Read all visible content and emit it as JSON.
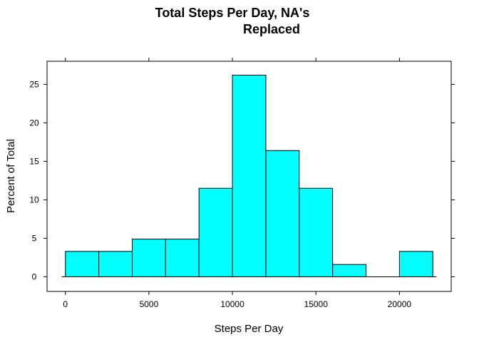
{
  "chart_data": {
    "type": "bar",
    "title_lines": [
      "Total Steps Per Day, NA's",
      "Replaced"
    ],
    "xlabel": "Steps Per Day",
    "ylabel": "Percent of Total",
    "xlim": [
      -1100,
      23100
    ],
    "ylim": [
      -1.9,
      28.0
    ],
    "x_ticks": [
      0,
      5000,
      10000,
      15000,
      20000
    ],
    "x_tick_labels": [
      "0",
      "5000",
      "10000",
      "15000",
      "20000"
    ],
    "y_ticks": [
      0,
      5,
      10,
      15,
      20,
      25
    ],
    "y_tick_labels": [
      "0",
      "5",
      "10",
      "15",
      "20",
      "25"
    ],
    "grid": false,
    "legend": "none",
    "bar_color": "#00FFFF",
    "bar_edge_color": "#000000",
    "bins": [
      {
        "start": 0,
        "end": 2000,
        "value": 3.3
      },
      {
        "start": 2000,
        "end": 4000,
        "value": 3.3
      },
      {
        "start": 4000,
        "end": 6000,
        "value": 4.9
      },
      {
        "start": 6000,
        "end": 8000,
        "value": 4.9
      },
      {
        "start": 8000,
        "end": 10000,
        "value": 11.5
      },
      {
        "start": 10000,
        "end": 12000,
        "value": 26.2
      },
      {
        "start": 12000,
        "end": 14000,
        "value": 16.4
      },
      {
        "start": 14000,
        "end": 16000,
        "value": 11.5
      },
      {
        "start": 16000,
        "end": 18000,
        "value": 1.6
      },
      {
        "start": 18000,
        "end": 20000,
        "value": 0
      },
      {
        "start": 20000,
        "end": 22000,
        "value": 3.3
      }
    ],
    "baseline_value": 0
  }
}
